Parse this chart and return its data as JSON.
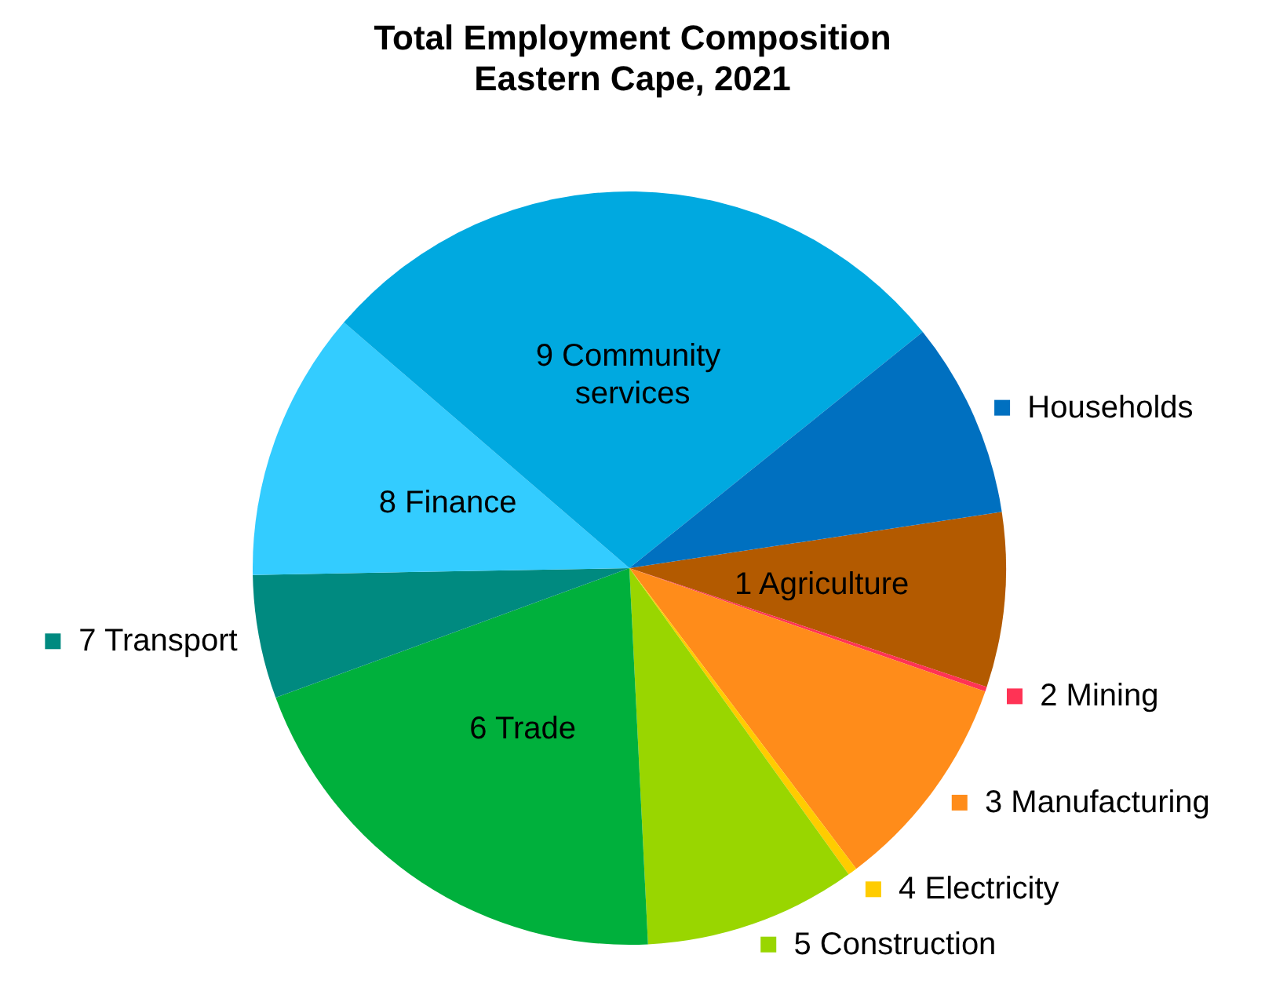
{
  "chart_data": {
    "type": "pie",
    "title": "Total Employment Composition",
    "subtitle": "Eastern Cape, 2021",
    "categories": [
      "1 Agriculture",
      "2 Mining",
      "3 Manufacturing",
      "4 Electricity",
      "5 Construction",
      "6 Trade",
      "7 Transport",
      "8 Finance",
      "9 Community services",
      "Households"
    ],
    "values": [
      7.5,
      0.2,
      9.4,
      0.4,
      9.1,
      20.2,
      5.3,
      11.6,
      27.9,
      8.4
    ],
    "colors": [
      "#b35a00",
      "#ff3355",
      "#ff8c1a",
      "#ffcc00",
      "#99d600",
      "#00b03c",
      "#008a80",
      "#33ccff",
      "#00a9e0",
      "#0070c0"
    ],
    "legend": "right"
  }
}
